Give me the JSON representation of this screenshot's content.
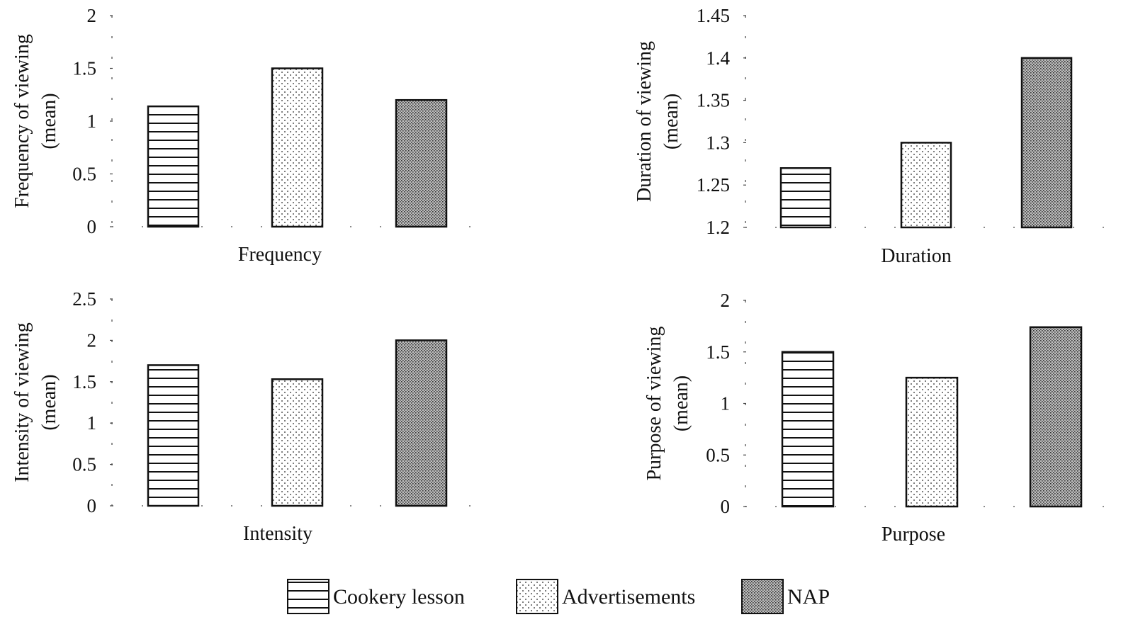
{
  "colors": {
    "bar_stroke": "#111111",
    "background": "#ffffff",
    "cookery_pattern": "horizontal-lines",
    "advertisements_pattern": "sparse-dots",
    "nap_pattern": "dense-crosshatch"
  },
  "legend": {
    "items": [
      "Cookery lesson",
      "Advertisements",
      "NAP"
    ]
  },
  "chart_data": [
    {
      "type": "bar",
      "xlabel": "Frequency",
      "ylabel_line1": "Frequency of viewing",
      "ylabel_line2": "(mean)",
      "ylim": [
        0,
        2
      ],
      "yticks": [
        "0",
        "0.5",
        "1",
        "1.5",
        "2"
      ],
      "categories": [
        "Cookery lesson",
        "Advertisements",
        "NAP"
      ],
      "values": [
        1.14,
        1.5,
        1.2
      ]
    },
    {
      "type": "bar",
      "xlabel": "Duration",
      "ylabel_line1": "Duration of viewing",
      "ylabel_line2": "(mean)",
      "ylim": [
        1.2,
        1.45
      ],
      "yticks": [
        "1.2",
        "1.25",
        "1.3",
        "1.35",
        "1.4",
        "1.45"
      ],
      "categories": [
        "Cookery lesson",
        "Advertisements",
        "NAP"
      ],
      "values": [
        1.27,
        1.3,
        1.4
      ]
    },
    {
      "type": "bar",
      "xlabel": "Intensity",
      "ylabel_line1": "Intensity of viewing",
      "ylabel_line2": "(mean)",
      "ylim": [
        0,
        2.5
      ],
      "yticks": [
        "0",
        "0.5",
        "1",
        "1.5",
        "2",
        "2.5"
      ],
      "categories": [
        "Cookery lesson",
        "Advertisements",
        "NAP"
      ],
      "values": [
        1.7,
        1.53,
        2.0
      ]
    },
    {
      "type": "bar",
      "xlabel": "Purpose",
      "ylabel_line1": "Purpose of viewing",
      "ylabel_line2": "(mean)",
      "ylim": [
        0,
        2
      ],
      "yticks": [
        "0",
        "0.5",
        "1",
        "1.5",
        "2"
      ],
      "categories": [
        "Cookery lesson",
        "Advertisements",
        "NAP"
      ],
      "values": [
        1.5,
        1.25,
        1.74
      ]
    }
  ]
}
